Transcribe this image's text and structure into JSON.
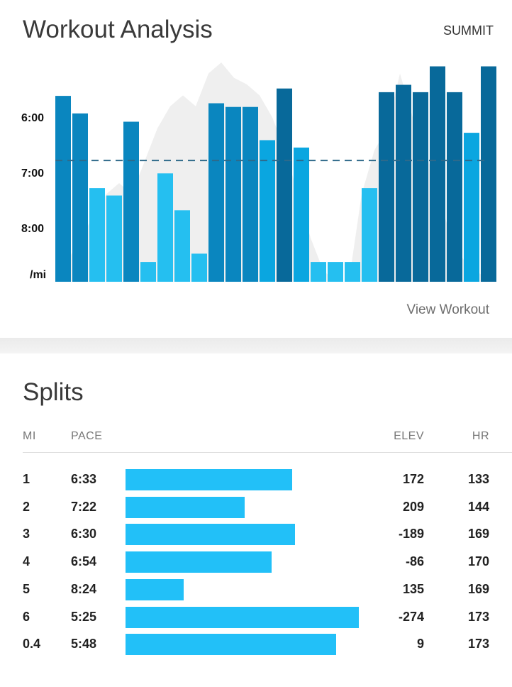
{
  "header": {
    "title": "Workout Analysis",
    "summit_label": "SUMMIT"
  },
  "chart_data": {
    "type": "bar",
    "y_ticks": [
      "6:00",
      "7:00",
      "8:00"
    ],
    "y_unit_label": "/mi",
    "pace_seconds": [
      337,
      356,
      437,
      445,
      365,
      517,
      421,
      461,
      508,
      345,
      349,
      349,
      385,
      329,
      393,
      517,
      517,
      517,
      437,
      333,
      325,
      333,
      305,
      333,
      377,
      305
    ],
    "average_pace_seconds": 407,
    "elevation_relative": [
      5,
      10,
      20,
      30,
      40,
      45,
      40,
      55,
      70,
      80,
      85,
      80,
      95,
      100,
      93,
      90,
      85,
      75,
      60,
      40,
      20,
      5,
      0,
      0,
      40,
      60,
      70,
      95,
      75,
      60,
      40,
      20,
      10,
      5,
      0
    ],
    "ylim_seconds": [
      300,
      540
    ],
    "colors": {
      "fastest": "#08699a",
      "fast": "#0a86bf",
      "medium": "#0aa6e0",
      "slow": "#25bff0",
      "elevation": "#efefef",
      "average_line": "#2f6a8a"
    }
  },
  "view_workout_label": "View Workout",
  "splits": {
    "title": "Splits",
    "columns": {
      "mi": "MI",
      "pace": "PACE",
      "elev": "ELEV",
      "hr": "HR"
    },
    "rows": [
      {
        "mi": "1",
        "pace": "6:33",
        "pace_seconds": 393,
        "elev": "172",
        "hr": "133"
      },
      {
        "mi": "2",
        "pace": "7:22",
        "pace_seconds": 442,
        "elev": "209",
        "hr": "144"
      },
      {
        "mi": "3",
        "pace": "6:30",
        "pace_seconds": 390,
        "elev": "-189",
        "hr": "169"
      },
      {
        "mi": "4",
        "pace": "6:54",
        "pace_seconds": 414,
        "elev": "-86",
        "hr": "170"
      },
      {
        "mi": "5",
        "pace": "8:24",
        "pace_seconds": 504,
        "elev": "135",
        "hr": "169"
      },
      {
        "mi": "6",
        "pace": "5:25",
        "pace_seconds": 325,
        "elev": "-274",
        "hr": "173"
      },
      {
        "mi": "0.4",
        "pace": "5:48",
        "pace_seconds": 348,
        "elev": "9",
        "hr": "173"
      }
    ]
  }
}
